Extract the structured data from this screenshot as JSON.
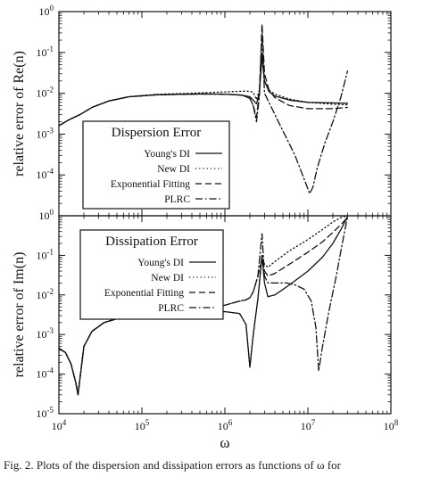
{
  "caption": "Fig. 2.   Plots of the dispersion and dissipation errors as functions of ω for",
  "x_axis": {
    "label": "ω",
    "tick_labels": [
      "10^4",
      "10^5",
      "10^6",
      "10^7",
      "10^8"
    ]
  },
  "chart_data": [
    {
      "type": "line",
      "panel": "top",
      "ylabel": "relative error of Re(n)",
      "xscale": "log",
      "yscale": "log",
      "xlim": [
        10000,
        100000000
      ],
      "ylim": [
        1e-05,
        1
      ],
      "ytick_labels": [
        "10^-5",
        "10^-4",
        "10^-3",
        "10^-2",
        "10^-1",
        "10^0"
      ],
      "legend_title": "Dispersion Error",
      "legend_position": "lower-left",
      "grid": false,
      "series": [
        {
          "name": "Young's DI",
          "style": "solid",
          "x": [
            10000,
            13000,
            18000,
            25000,
            40000,
            70000,
            150000,
            500000,
            1000000,
            1600000,
            2000000,
            2200000,
            2400000,
            2600000,
            2800000,
            3000000,
            3400000,
            4000000,
            6000000,
            10000000,
            20000000,
            30000000
          ],
          "y": [
            0.0016,
            0.0022,
            0.003,
            0.0045,
            0.0065,
            0.0082,
            0.0092,
            0.0096,
            0.0095,
            0.009,
            0.0082,
            0.0068,
            0.0055,
            0.01,
            0.08,
            0.02,
            0.011,
            0.0085,
            0.0068,
            0.006,
            0.0058,
            0.0057
          ]
        },
        {
          "name": "New DI",
          "style": "dotted",
          "x": [
            10000,
            13000,
            18000,
            25000,
            40000,
            70000,
            150000,
            500000,
            1000000,
            1600000,
            2000000,
            2200000,
            2400000,
            2600000,
            2800000,
            3000000,
            3400000,
            4000000,
            6000000,
            10000000,
            20000000,
            30000000
          ],
          "y": [
            0.0016,
            0.0022,
            0.003,
            0.0045,
            0.0065,
            0.0082,
            0.0094,
            0.0102,
            0.0108,
            0.0112,
            0.0112,
            0.0104,
            0.007,
            0.012,
            0.09,
            0.02,
            0.012,
            0.0095,
            0.0072,
            0.006,
            0.0054,
            0.0052
          ]
        },
        {
          "name": "Exponential Fitting",
          "style": "dashed",
          "x": [
            10000,
            13000,
            18000,
            25000,
            40000,
            70000,
            150000,
            500000,
            1000000,
            1600000,
            2000000,
            2200000,
            2400000,
            2600000,
            2700000,
            2800000,
            3000000,
            3400000,
            4000000,
            6000000,
            10000000,
            20000000,
            30000000
          ],
          "y": [
            0.0016,
            0.0022,
            0.003,
            0.0045,
            0.0065,
            0.0082,
            0.0092,
            0.0096,
            0.0095,
            0.009,
            0.0075,
            0.005,
            0.0026,
            0.01,
            0.06,
            0.5,
            0.03,
            0.012,
            0.0078,
            0.005,
            0.0042,
            0.0042,
            0.0045
          ]
        },
        {
          "name": "PLRC",
          "style": "dash-dot",
          "x": [
            10000,
            13000,
            18000,
            25000,
            40000,
            70000,
            150000,
            500000,
            1000000,
            1600000,
            2000000,
            2200000,
            2400000,
            2600000,
            2700000,
            2800000,
            3000000,
            3400000,
            4000000,
            5000000,
            7000000,
            9000000,
            10500000,
            11500000,
            13000000,
            16000000,
            20000000,
            25000000,
            30000000
          ],
          "y": [
            0.0016,
            0.0022,
            0.003,
            0.0045,
            0.0065,
            0.0082,
            0.0092,
            0.0096,
            0.0095,
            0.009,
            0.0075,
            0.005,
            0.002,
            0.008,
            0.05,
            0.3,
            0.01,
            0.006,
            0.003,
            0.0012,
            0.0003,
            8e-05,
            3.5e-05,
            5e-05,
            0.00015,
            0.0006,
            0.002,
            0.008,
            0.035
          ]
        }
      ]
    },
    {
      "type": "line",
      "panel": "bottom",
      "ylabel": "relative error of Im(n)",
      "xlabel": "ω",
      "xscale": "log",
      "yscale": "log",
      "xlim": [
        10000,
        100000000
      ],
      "ylim": [
        1e-05,
        1
      ],
      "ytick_labels": [
        "10^-5",
        "10^-4",
        "10^-3",
        "10^-2",
        "10^-1",
        "10^0"
      ],
      "legend_title": "Dissipation Error",
      "legend_position": "upper-left",
      "grid": false,
      "series": [
        {
          "name": "Young's DI",
          "style": "solid",
          "x": [
            10000,
            12000,
            14000,
            16000,
            17000,
            18000,
            20000,
            25000,
            35000,
            60000,
            150000,
            500000,
            1000000,
            1500000,
            1800000,
            2000000,
            2200000,
            2500000,
            2800000,
            3000000,
            3300000,
            4000000,
            6000000,
            10000000,
            15000000,
            20000000,
            25000000,
            30000000
          ],
          "y": [
            0.00045,
            0.00035,
            0.00018,
            6e-05,
            3e-05,
            8e-05,
            0.0005,
            0.0012,
            0.002,
            0.0028,
            0.0032,
            0.0035,
            0.0038,
            0.0034,
            0.0018,
            0.00015,
            0.001,
            0.008,
            0.1,
            0.02,
            0.009,
            0.01,
            0.018,
            0.04,
            0.09,
            0.2,
            0.45,
            0.95
          ]
        },
        {
          "name": "New DI",
          "style": "dotted",
          "x": [
            10000,
            12000,
            14000,
            16000,
            17000,
            18000,
            20000,
            25000,
            35000,
            60000,
            150000,
            500000,
            1000000,
            1500000,
            1800000,
            2000000,
            2200000,
            2500000,
            2800000,
            3000000,
            3300000,
            4000000,
            6000000,
            10000000,
            15000000,
            20000000,
            25000000,
            30000000
          ],
          "y": [
            0.00045,
            0.00035,
            0.00018,
            6e-05,
            3e-05,
            8e-05,
            0.0005,
            0.0012,
            0.002,
            0.0028,
            0.0032,
            0.0035,
            0.0038,
            0.0034,
            0.0018,
            0.00015,
            0.001,
            0.008,
            0.1,
            0.06,
            0.05,
            0.07,
            0.13,
            0.25,
            0.45,
            0.7,
            0.9,
            1.0
          ]
        },
        {
          "name": "Exponential Fitting",
          "style": "dashed",
          "x": [
            10000,
            12000,
            14000,
            16000,
            17000,
            18000,
            20000,
            25000,
            35000,
            60000,
            150000,
            500000,
            1000000,
            1500000,
            1800000,
            2000000,
            2200000,
            2500000,
            2800000,
            3000000,
            3300000,
            4000000,
            6000000,
            10000000,
            15000000,
            20000000,
            25000000,
            30000000
          ],
          "y": [
            0.00045,
            0.00035,
            0.00018,
            6e-05,
            3e-05,
            8e-05,
            0.0005,
            0.0012,
            0.002,
            0.0028,
            0.0032,
            0.0038,
            0.0055,
            0.007,
            0.0075,
            0.0085,
            0.012,
            0.03,
            0.08,
            0.04,
            0.03,
            0.035,
            0.06,
            0.12,
            0.22,
            0.38,
            0.6,
            0.9
          ]
        },
        {
          "name": "PLRC",
          "style": "dash-dot",
          "x": [
            10000,
            12000,
            14000,
            16000,
            17000,
            18000,
            20000,
            25000,
            35000,
            60000,
            150000,
            500000,
            1000000,
            1500000,
            1800000,
            2000000,
            2200000,
            2500000,
            2800000,
            3000000,
            3300000,
            4000000,
            5500000,
            7000000,
            9000000,
            11000000,
            12500000,
            13500000,
            15000000,
            18000000,
            22000000,
            26000000,
            30000000
          ],
          "y": [
            0.00045,
            0.00035,
            0.00018,
            6e-05,
            3e-05,
            8e-05,
            0.0005,
            0.0012,
            0.002,
            0.0028,
            0.0032,
            0.0038,
            0.0055,
            0.007,
            0.0075,
            0.0085,
            0.012,
            0.03,
            0.35,
            0.03,
            0.02,
            0.02,
            0.02,
            0.018,
            0.014,
            0.007,
            0.0015,
            0.00012,
            0.0005,
            0.004,
            0.03,
            0.2,
            0.95
          ]
        }
      ]
    }
  ]
}
